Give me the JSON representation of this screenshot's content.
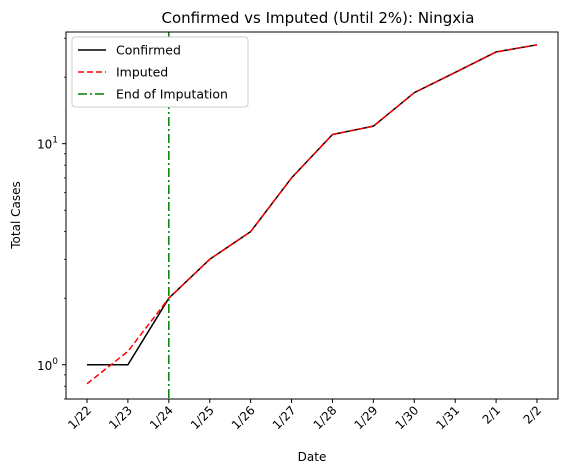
{
  "chart_data": {
    "type": "line",
    "title": "Confirmed vs Imputed (Until 2%): Ningxia",
    "xlabel": "Date",
    "ylabel": "Total Cases",
    "yscale": "log",
    "ylim": [
      0.7,
      32
    ],
    "categories": [
      "1/22",
      "1/23",
      "1/24",
      "1/25",
      "1/26",
      "1/27",
      "1/28",
      "1/29",
      "1/30",
      "1/31",
      "2/1",
      "2/2"
    ],
    "y_ticks": [
      {
        "value": 1,
        "base": "10",
        "exp": "0"
      },
      {
        "value": 10,
        "base": "10",
        "exp": "1"
      }
    ],
    "series": [
      {
        "name": "Confirmed",
        "color": "#000000",
        "style": "solid",
        "values": [
          1,
          1,
          2,
          3,
          4,
          7,
          11,
          12,
          17,
          21,
          26,
          28
        ]
      },
      {
        "name": "Imputed",
        "color": "#ff0000",
        "style": "dashed",
        "values": [
          0.82,
          1.15,
          2,
          3,
          4,
          7,
          11,
          12,
          17,
          21,
          26,
          28
        ]
      }
    ],
    "vlines": [
      {
        "name": "End of Imputation",
        "color": "#008000",
        "style": "dashdot",
        "x": "1/24"
      }
    ],
    "legend": "upper-left",
    "grid": false
  }
}
